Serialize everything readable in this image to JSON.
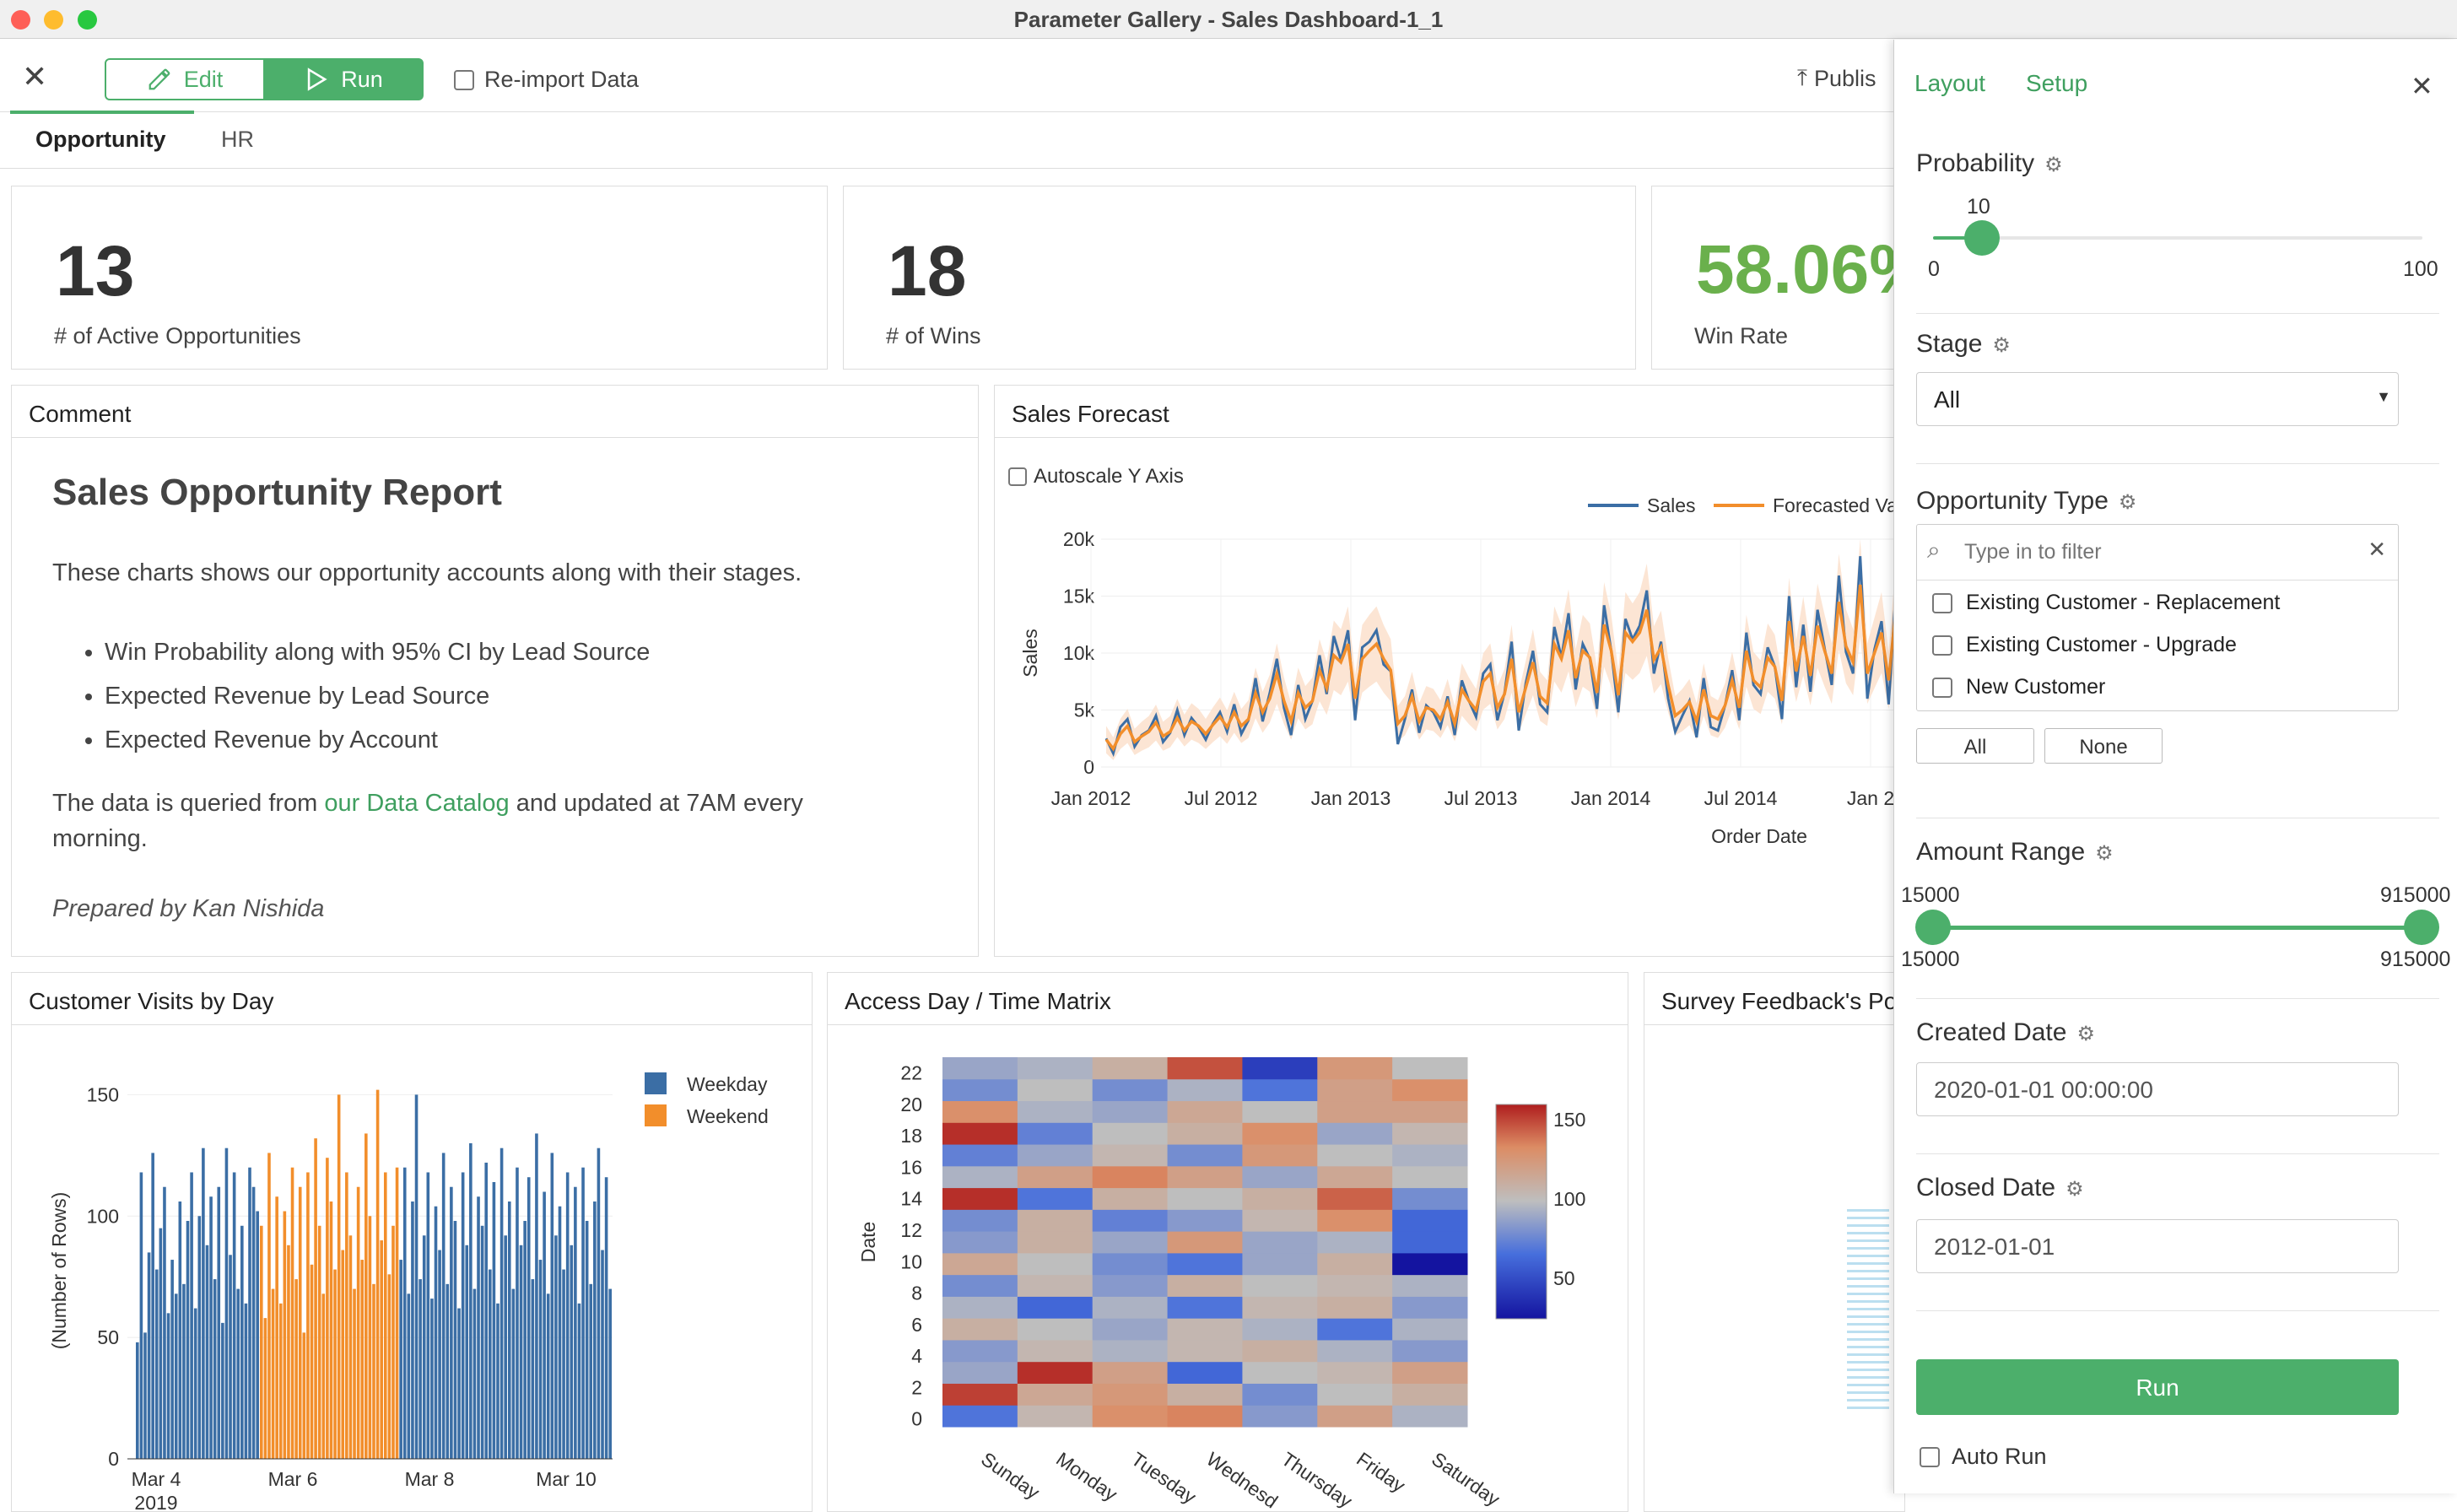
{
  "window": {
    "title": "Parameter Gallery - Sales Dashboard-1_1"
  },
  "toolbar": {
    "edit_label": "Edit",
    "run_label": "Run",
    "reimport_label": "Re-import Data",
    "publish_label": "Publis"
  },
  "tabs": [
    "Opportunity",
    "HR"
  ],
  "kpis": [
    {
      "value": "13",
      "label": "# of Active Opportunities"
    },
    {
      "value": "18",
      "label": "# of Wins"
    },
    {
      "value": "58.06%",
      "label": "Win Rate",
      "color": "#6ab04c"
    }
  ],
  "comment": {
    "title": "Comment",
    "heading": "Sales Opportunity Report",
    "intro": "These charts shows our opportunity accounts along with their stages.",
    "bullets": [
      "Win Probability along with 95% CI by Lead Source",
      "Expected Revenue by Lead Source",
      "Expected Revenue by Account"
    ],
    "data_text_before": "The data is queried from ",
    "data_link": "our Data Catalog",
    "data_text_after": " and updated at 7AM every morning.",
    "signature": "Prepared by Kan Nishida"
  },
  "sales_forecast": {
    "title": "Sales Forecast",
    "autoscale_label": "Autoscale Y Axis"
  },
  "customer_visits": {
    "title": "Customer Visits by Day"
  },
  "access_matrix": {
    "title": "Access Day / Time Matrix"
  },
  "survey": {
    "title": "Survey Feedback's Po"
  },
  "colors": {
    "accent": "#4caf6b",
    "link": "#3f9f5f",
    "sales": "#3b6ea5",
    "forecast": "#f28e2b"
  },
  "settings": {
    "tab_layout": "Layout",
    "tab_setup": "Setup",
    "probability": {
      "label": "Probability",
      "value": "10",
      "min": "0",
      "max": "100",
      "fraction": 0.1
    },
    "stage": {
      "label": "Stage",
      "value": "All"
    },
    "opportunity_type": {
      "label": "Opportunity Type",
      "placeholder": "Type in to filter",
      "options": [
        "Existing Customer - Replacement",
        "Existing Customer - Upgrade",
        "New Customer"
      ],
      "all_label": "All",
      "none_label": "None"
    },
    "amount_range": {
      "label": "Amount Range",
      "low": "15000",
      "high": "915000",
      "min": "15000",
      "max": "915000"
    },
    "created_date": {
      "label": "Created Date",
      "value": "2020-01-01 00:00:00"
    },
    "closed_date": {
      "label": "Closed Date",
      "value": "2012-01-01"
    },
    "run_label": "Run",
    "autorun_label": "Auto Run"
  },
  "chart_data": [
    {
      "type": "line",
      "title": "Sales Forecast",
      "xlabel": "Order Date",
      "ylabel": "Sales",
      "ylim": [
        0,
        20000
      ],
      "yticks": [
        "0",
        "5k",
        "10k",
        "15k",
        "20k"
      ],
      "xticks": [
        "Jan 2012",
        "Jul 2012",
        "Jan 2013",
        "Jul 2013",
        "Jan 2014",
        "Jul 2014",
        "Jan 2"
      ],
      "legend": "top-right",
      "series": [
        {
          "name": "Sales",
          "values": [
            2500,
            1200,
            3500,
            4200,
            1800,
            2800,
            3200,
            4500,
            2200,
            3000,
            5000,
            2800,
            4300,
            3500,
            2400,
            3800,
            4800,
            3100,
            5500,
            2900,
            4100,
            7800,
            4000,
            6500,
            9500,
            5200,
            2800,
            7200,
            4200,
            5800,
            9800,
            6400,
            11500,
            9400,
            12000,
            4100,
            10500,
            11000,
            12000,
            9000,
            8400,
            2000,
            4200,
            6800,
            3000,
            5400,
            4800,
            3500,
            6200,
            2800,
            7600,
            5800,
            4400,
            8200,
            9000,
            4100,
            6500,
            11000,
            3200,
            7400,
            10200,
            5500,
            4800,
            12300,
            9600,
            13500,
            6800,
            10800,
            9500,
            5100,
            14200,
            10200,
            4800,
            13000,
            11200,
            12400,
            15500,
            8200,
            11000,
            6000,
            3100,
            4500,
            5800,
            2600,
            7800,
            3500,
            3200,
            5400,
            8500,
            4100,
            11800,
            7200,
            6400,
            10500,
            8800,
            4200,
            15000,
            7000,
            12500,
            6600,
            13800,
            10400,
            7200,
            16800,
            10100,
            8200,
            18500,
            6000,
            10300,
            12800,
            5500,
            15400,
            12200,
            16800,
            9000,
            14200,
            7600
          ]
        },
        {
          "name": "Forecasted Value",
          "values": [
            2400,
            1600,
            2900,
            3600,
            2200,
            2700,
            3100,
            3900,
            2700,
            3100,
            4300,
            3200,
            4000,
            3600,
            2900,
            3700,
            4400,
            3500,
            4800,
            3600,
            4200,
            6500,
            4800,
            6000,
            8200,
            5800,
            4000,
            6500,
            5200,
            5800,
            8500,
            6900,
            9800,
            9200,
            10800,
            6000,
            9500,
            10200,
            10800,
            9500,
            8500,
            3800,
            4500,
            6200,
            4000,
            5200,
            5000,
            4200,
            5700,
            3800,
            6800,
            5800,
            5000,
            7500,
            8200,
            5200,
            6400,
            9500,
            4800,
            7000,
            9200,
            6200,
            5600,
            10800,
            9500,
            12000,
            7800,
            10200,
            9600,
            6500,
            12500,
            10200,
            6300,
            11800,
            11000,
            11800,
            13800,
            9400,
            10500,
            7200,
            4500,
            5000,
            5700,
            4000,
            6800,
            4500,
            4200,
            5400,
            7600,
            5200,
            10200,
            7600,
            7000,
            9600,
            8800,
            5800,
            12800,
            8400,
            11500,
            8000,
            12400,
            10200,
            8200,
            14500,
            10600,
            9200,
            16000,
            8200,
            10000,
            11800,
            7600,
            13800,
            12000,
            15000,
            10000,
            13400,
            9500
          ]
        }
      ]
    },
    {
      "type": "bar",
      "title": "Customer Visits by Day",
      "ylabel": "(Number of Rows)",
      "ylim": [
        0,
        155
      ],
      "yticks": [
        "0",
        "50",
        "100",
        "150"
      ],
      "xticks": [
        "Mar 4",
        "Mar 6",
        "Mar 8",
        "Mar 10"
      ],
      "xtick_sub": "2019",
      "legend": "top-right",
      "series": [
        {
          "name": "Weekday",
          "color": "#3b6ea5",
          "values": [
            48,
            118,
            52,
            85,
            126,
            78,
            95,
            112,
            60,
            82,
            68,
            106,
            72,
            98,
            118,
            62,
            100,
            128,
            88,
            108,
            74,
            112,
            56,
            128,
            84,
            118,
            70,
            96,
            64,
            120,
            112,
            102
          ]
        },
        {
          "name": "Weekend",
          "color": "#f28e2b",
          "values": [
            96,
            58,
            126,
            70,
            108,
            64,
            102,
            88,
            120,
            74,
            112,
            52,
            118,
            80,
            132,
            96,
            68,
            124,
            106,
            78,
            150,
            86,
            118,
            92,
            70,
            112,
            82,
            134,
            100,
            72,
            152,
            90,
            118,
            76,
            96,
            120
          ]
        },
        {
          "name": "Weekday",
          "color": "#3b6ea5",
          "values": [
            82,
            120,
            68,
            106,
            150,
            74,
            92,
            118,
            66,
            104,
            86,
            126,
            72,
            112,
            98,
            62,
            118,
            88,
            130,
            70,
            108,
            96,
            122,
            78,
            114,
            64,
            128,
            92,
            106,
            70,
            120,
            88,
            98,
            116,
            74,
            134,
            82,
            110,
            68,
            126,
            92,
            104,
            78,
            118,
            88,
            112,
            64,
            120,
            98,
            72,
            106,
            128,
            86,
            116,
            70
          ]
        }
      ]
    },
    {
      "type": "heatmap",
      "title": "Access Day / Time Matrix",
      "ylabel": "Date",
      "categories": [
        "Sunday",
        "Monday",
        "Tuesday",
        "Wednesd",
        "Thursday",
        "Friday",
        "Saturday"
      ],
      "yticks": [
        "0",
        "2",
        "4",
        "6",
        "8",
        "10",
        "12",
        "14",
        "16",
        "18",
        "20",
        "22"
      ],
      "colorscale_ticks": [
        "50",
        "100",
        "150"
      ],
      "rows": [
        [
          60,
          95,
          120,
          125,
          75,
          110,
          85
        ],
        [
          145,
          105,
          115,
          100,
          70,
          90,
          100
        ],
        [
          80,
          150,
          110,
          55,
          90,
          95,
          110
        ],
        [
          75,
          95,
          85,
          95,
          100,
          85,
          75
        ],
        [
          100,
          90,
          80,
          95,
          85,
          60,
          85
        ],
        [
          85,
          55,
          85,
          60,
          95,
          100,
          75
        ],
        [
          70,
          95,
          75,
          100,
          90,
          95,
          85
        ],
        [
          105,
          90,
          70,
          60,
          80,
          100,
          25
        ],
        [
          75,
          100,
          80,
          115,
          80,
          85,
          55
        ],
        [
          70,
          100,
          65,
          75,
          95,
          120,
          55
        ],
        [
          150,
          60,
          100,
          90,
          100,
          135,
          70
        ],
        [
          85,
          110,
          125,
          110,
          80,
          105,
          90
        ],
        [
          65,
          80,
          95,
          70,
          115,
          90,
          85
        ],
        [
          150,
          65,
          90,
          100,
          120,
          80,
          95
        ],
        [
          120,
          85,
          80,
          105,
          90,
          110,
          110
        ],
        [
          70,
          90,
          70,
          85,
          60,
          110,
          120
        ],
        [
          80,
          85,
          100,
          140,
          40,
          115,
          90
        ]
      ]
    }
  ]
}
